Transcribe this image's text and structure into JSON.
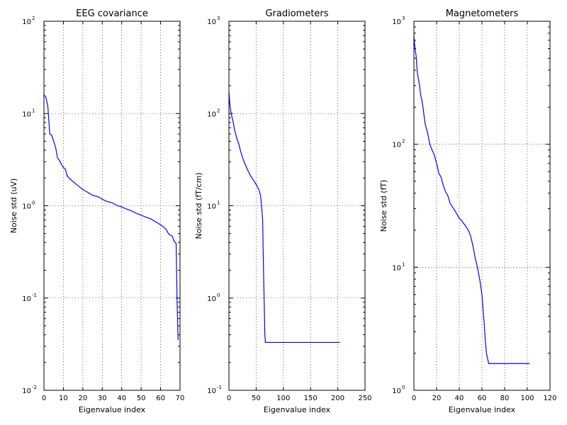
{
  "chart_data": [
    {
      "type": "line",
      "title": "EEG covariance",
      "xlabel": "Eigenvalue index",
      "ylabel": "Noise std (uV)",
      "yscale": "log",
      "xlim": [
        0,
        70
      ],
      "ylim": [
        0.01,
        100
      ],
      "xticks": [
        "0",
        "10",
        "20",
        "30",
        "40",
        "50",
        "60",
        "70"
      ],
      "ytick_bases": [
        "10",
        "10",
        "10",
        "10",
        "10"
      ],
      "ytick_exps": [
        "-2",
        "-1",
        "0",
        "1",
        "2"
      ],
      "grid": true,
      "color": "#0000ff",
      "series": [
        {
          "x": [
            0,
            1,
            2,
            3,
            4,
            5,
            6,
            7,
            8,
            9,
            10,
            11,
            12,
            14,
            16,
            18,
            20,
            22,
            25,
            28,
            30,
            32,
            35,
            38,
            40,
            42,
            45,
            48,
            50,
            52,
            55,
            58,
            60,
            62,
            63,
            64,
            65,
            66,
            67,
            68,
            68.5,
            69
          ],
          "y": [
            16,
            15,
            12,
            6.0,
            5.8,
            5.0,
            4.3,
            3.3,
            3.1,
            2.8,
            2.6,
            2.5,
            2.1,
            1.9,
            1.75,
            1.62,
            1.5,
            1.42,
            1.3,
            1.25,
            1.18,
            1.12,
            1.08,
            1.0,
            0.97,
            0.93,
            0.88,
            0.82,
            0.79,
            0.76,
            0.72,
            0.66,
            0.62,
            0.58,
            0.55,
            0.5,
            0.48,
            0.47,
            0.41,
            0.39,
            0.09,
            0.035
          ]
        }
      ]
    },
    {
      "type": "line",
      "title": "Gradiometers",
      "xlabel": "Eigenvalue index",
      "ylabel": "Noise std (fT/cm)",
      "yscale": "log",
      "xlim": [
        0,
        250
      ],
      "ylim": [
        0.1,
        1000
      ],
      "xticks": [
        "0",
        "50",
        "100",
        "150",
        "200",
        "250"
      ],
      "ytick_bases": [
        "10",
        "10",
        "10",
        "10",
        "10"
      ],
      "ytick_exps": [
        "-1",
        "0",
        "1",
        "2",
        "3"
      ],
      "grid": true,
      "color": "#0000ff",
      "series": [
        {
          "x": [
            0,
            2,
            4,
            6,
            8,
            10,
            14,
            18,
            22,
            26,
            30,
            35,
            40,
            45,
            50,
            55,
            58,
            60,
            62,
            63,
            64,
            65,
            66,
            67,
            200,
            204
          ],
          "y": [
            170,
            120,
            100,
            90,
            80,
            68,
            55,
            47,
            38,
            32,
            28,
            24,
            21,
            19,
            17,
            15,
            13,
            10,
            7,
            3,
            1.5,
            0.8,
            0.4,
            0.33,
            0.33,
            0.33
          ]
        }
      ]
    },
    {
      "type": "line",
      "title": "Magnetometers",
      "xlabel": "Eigenvalue index",
      "ylabel": "Noise std (fT)",
      "yscale": "log",
      "xlim": [
        0,
        120
      ],
      "ylim": [
        1,
        1000
      ],
      "xticks": [
        "0",
        "20",
        "40",
        "60",
        "80",
        "100",
        "120"
      ],
      "ytick_bases": [
        "10",
        "10",
        "10",
        "10"
      ],
      "ytick_exps": [
        "0",
        "1",
        "2",
        "3"
      ],
      "grid": true,
      "color": "#0000ff",
      "series": [
        {
          "x": [
            0,
            1,
            2,
            3,
            4,
            5,
            6,
            7,
            8,
            9,
            10,
            12,
            14,
            16,
            18,
            20,
            22,
            24,
            26,
            28,
            30,
            32,
            35,
            38,
            40,
            42,
            45,
            48,
            50,
            52,
            54,
            56,
            58,
            60,
            61,
            62,
            63,
            64,
            65,
            66,
            68,
            100,
            102
          ],
          "y": [
            750,
            600,
            520,
            380,
            340,
            300,
            250,
            230,
            200,
            170,
            145,
            125,
            100,
            90,
            82,
            70,
            58,
            54,
            46,
            41,
            38,
            33,
            30,
            27,
            25,
            24,
            22,
            20,
            18,
            15,
            12,
            10,
            8,
            6,
            4.5,
            3.5,
            2.5,
            2.0,
            1.8,
            1.65,
            1.65,
            1.65,
            1.65
          ]
        }
      ]
    }
  ]
}
